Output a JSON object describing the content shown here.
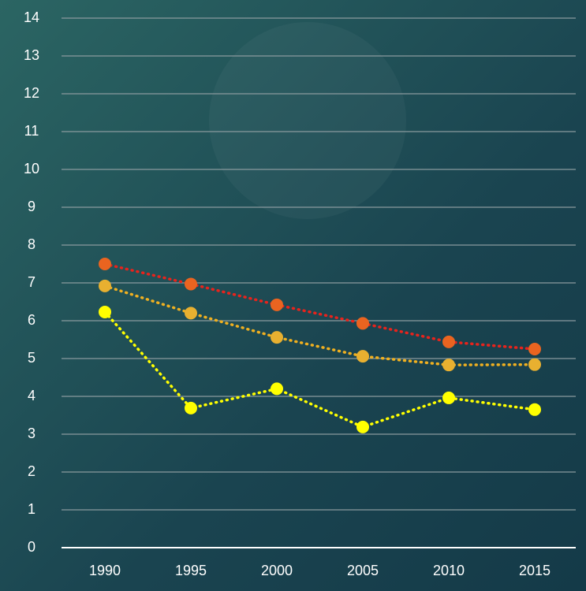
{
  "chart_data": {
    "type": "line",
    "categories": [
      "1990",
      "1995",
      "2000",
      "2005",
      "2010",
      "2015"
    ],
    "series": [
      {
        "color": "#e8231c",
        "marker_color": "#ea6420",
        "values": [
          7.5,
          6.97,
          6.42,
          5.93,
          5.44,
          5.25
        ]
      },
      {
        "color": "#f0b020",
        "marker_color": "#e8b030",
        "values": [
          6.92,
          6.2,
          5.56,
          5.06,
          4.83,
          4.84
        ]
      },
      {
        "color": "#ffff00",
        "marker_color": "#ffff00",
        "values": [
          6.23,
          3.69,
          4.2,
          3.19,
          3.96,
          3.65
        ]
      }
    ],
    "ylim": [
      0,
      14
    ],
    "yticks": [
      0,
      1,
      2,
      3,
      4,
      5,
      6,
      7,
      8,
      9,
      10,
      11,
      12,
      13,
      14
    ],
    "grid": true
  }
}
